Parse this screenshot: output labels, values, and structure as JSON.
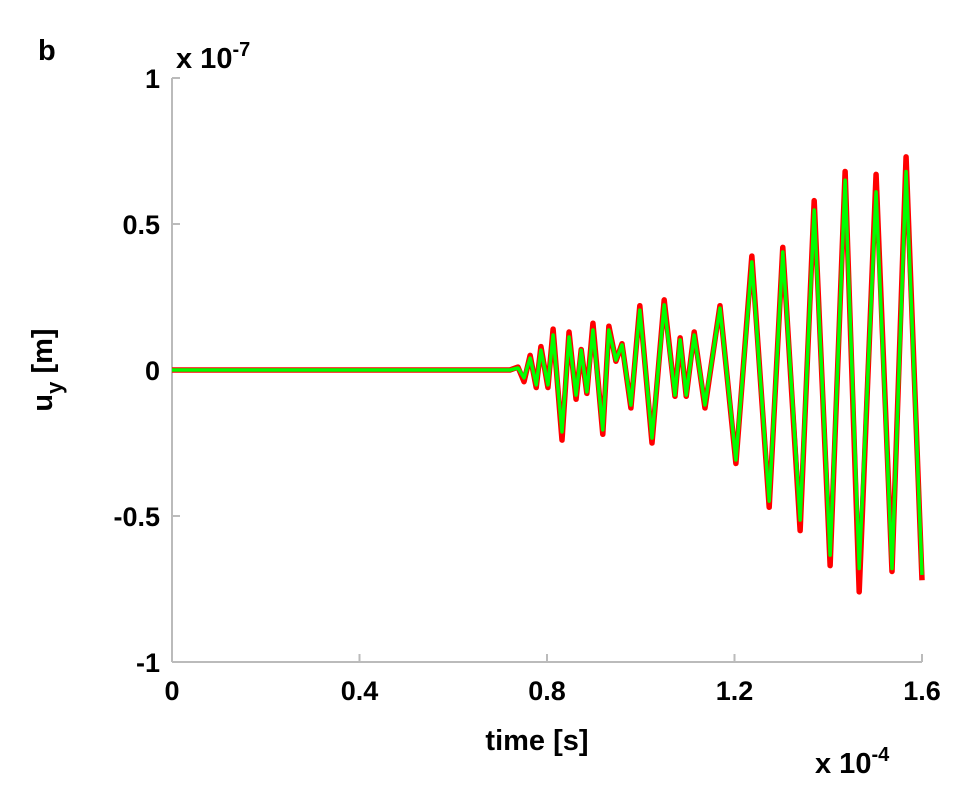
{
  "chart_data": {
    "type": "line",
    "panel_label": "b",
    "xlabel": "time [s]",
    "ylabel": {
      "base": "u",
      "sub": "y",
      "unit": "[m]"
    },
    "x_exponent": {
      "base": "x 10",
      "power": "-4"
    },
    "y_exponent": {
      "base": "x 10",
      "power": "-7"
    },
    "xlim": [
      0,
      1.6
    ],
    "ylim": [
      -1,
      1
    ],
    "xticks": [
      0,
      0.4,
      0.8,
      1.2,
      1.6
    ],
    "yticks": [
      -1,
      -0.5,
      0,
      0.5,
      1
    ],
    "x": [
      0,
      0.721,
      0.738,
      0.751,
      0.764,
      0.777,
      0.787,
      0.802,
      0.813,
      0.832,
      0.847,
      0.862,
      0.873,
      0.885,
      0.898,
      0.919,
      0.932,
      0.947,
      0.96,
      0.979,
      0.998,
      1.024,
      1.05,
      1.073,
      1.084,
      1.097,
      1.114,
      1.137,
      1.169,
      1.203,
      1.237,
      1.274,
      1.303,
      1.34,
      1.37,
      1.404,
      1.436,
      1.466,
      1.502,
      1.536,
      1.566,
      1.6
    ],
    "series": [
      {
        "color": "#0000ff",
        "values": [
          0,
          0,
          0.008,
          -0.03,
          0.045,
          -0.055,
          0.07,
          -0.055,
          0.125,
          -0.22,
          0.12,
          -0.09,
          0.07,
          -0.078,
          0.14,
          -0.21,
          0.14,
          0.032,
          0.088,
          -0.125,
          0.21,
          -0.24,
          0.23,
          -0.088,
          0.106,
          -0.088,
          0.124,
          -0.124,
          0.216,
          -0.312,
          0.38,
          -0.455,
          0.41,
          -0.52,
          0.56,
          -0.64,
          0.66,
          -0.72,
          0.66,
          -0.68,
          0.7,
          -0.705
        ]
      },
      {
        "color": "#ff0000",
        "values": [
          0,
          0,
          0.01,
          -0.04,
          0.05,
          -0.06,
          0.08,
          -0.06,
          0.14,
          -0.24,
          0.13,
          -0.1,
          0.07,
          -0.08,
          0.16,
          -0.22,
          0.15,
          0.03,
          0.09,
          -0.13,
          0.22,
          -0.25,
          0.24,
          -0.09,
          0.11,
          -0.09,
          0.13,
          -0.13,
          0.22,
          -0.32,
          0.39,
          -0.47,
          0.42,
          -0.55,
          0.58,
          -0.67,
          0.68,
          -0.76,
          0.67,
          -0.69,
          0.73,
          -0.72
        ]
      },
      {
        "color": "#00ff00",
        "values": [
          0,
          0,
          0.007,
          -0.027,
          0.041,
          -0.051,
          0.068,
          -0.051,
          0.12,
          -0.212,
          0.113,
          -0.086,
          0.068,
          -0.075,
          0.137,
          -0.205,
          0.137,
          0.034,
          0.086,
          -0.12,
          0.205,
          -0.233,
          0.223,
          -0.086,
          0.103,
          -0.086,
          0.12,
          -0.12,
          0.212,
          -0.308,
          0.37,
          -0.449,
          0.404,
          -0.514,
          0.548,
          -0.634,
          0.65,
          -0.68,
          0.61,
          -0.68,
          0.68,
          -0.702
        ]
      }
    ]
  }
}
